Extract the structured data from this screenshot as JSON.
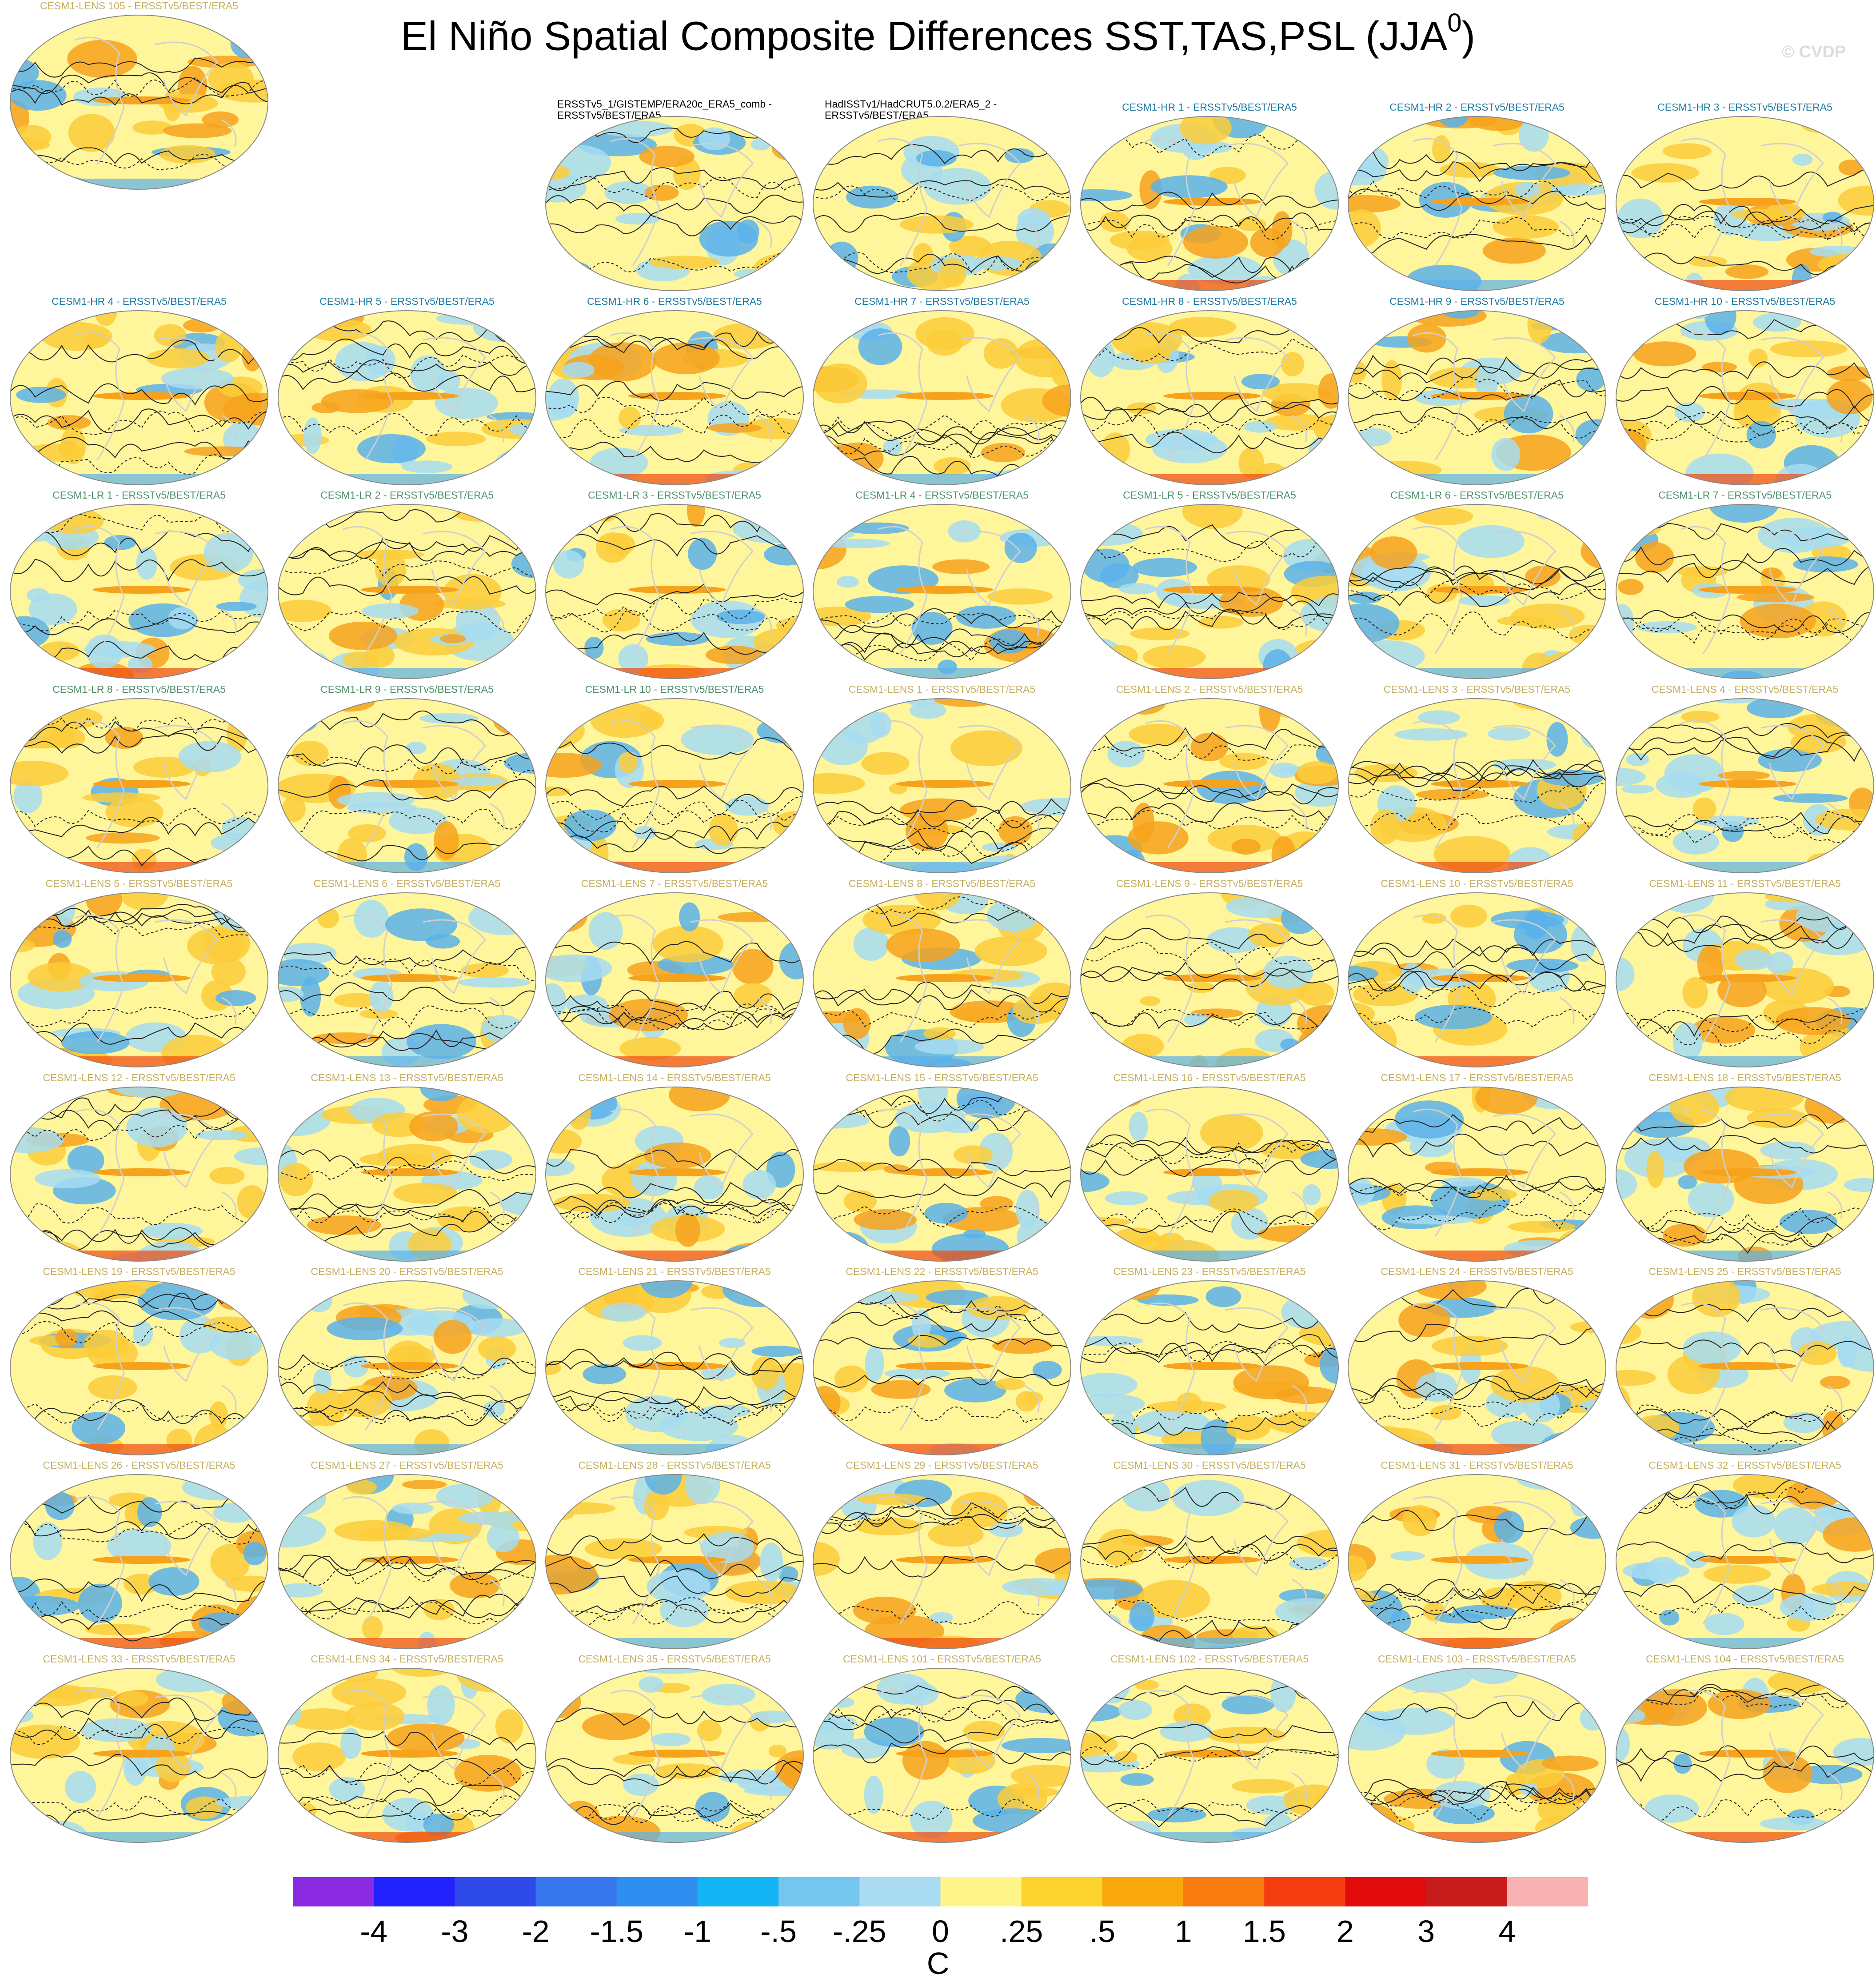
{
  "figure": {
    "title": "El Niño Spatial Composite Differences SST,TAS,PSL (JJA",
    "title_sup": "0",
    "title_end": ")",
    "watermark": "© CVDP",
    "units": "C"
  },
  "colors": {
    "hr_label": "#1f7aa0",
    "lr_label": "#4f8f6a",
    "lens_label": "#c4b060",
    "ocean_base": "#fff59a",
    "cool": "#a6dcf2",
    "cool_strong": "#5bb1ea",
    "warm": "#fccc3a",
    "warm_strong": "#f7a21c",
    "hot": "#f04810"
  },
  "colorbar": {
    "colors": [
      "#8a2be2",
      "#2222ff",
      "#2d4ae8",
      "#3677ee",
      "#2f8ff0",
      "#14b4f5",
      "#74c6ef",
      "#a9dcf2",
      "#fff489",
      "#fcd22c",
      "#faa90d",
      "#f77b0e",
      "#f53d12",
      "#e30c0c",
      "#c81b1b",
      "#f9b1b1"
    ],
    "ticks": [
      "-4",
      "-3",
      "-2",
      "-1.5",
      "-1",
      "-.5",
      "-.25",
      "0",
      ".25",
      ".5",
      "1",
      "1.5",
      "2",
      "3",
      "4"
    ]
  },
  "panels": [
    {
      "label": "ERSSTv5_1/GISTEMP/ERA20c_ERA5_comb - ERSSTv5/BEST/ERA5",
      "group": "obs"
    },
    {
      "label": "HadISSTv1/HadCRUT5.0.2/ERA5_2 - ERSSTv5/BEST/ERA5",
      "group": "obs"
    },
    {
      "label": "CESM1-HR 1 - ERSSTv5/BEST/ERA5",
      "group": "hr"
    },
    {
      "label": "CESM1-HR 2 - ERSSTv5/BEST/ERA5",
      "group": "hr"
    },
    {
      "label": "CESM1-HR 3 - ERSSTv5/BEST/ERA5",
      "group": "hr"
    },
    {
      "label": "CESM1-HR 4 - ERSSTv5/BEST/ERA5",
      "group": "hr"
    },
    {
      "label": "CESM1-HR 5 - ERSSTv5/BEST/ERA5",
      "group": "hr"
    },
    {
      "label": "CESM1-HR 6 - ERSSTv5/BEST/ERA5",
      "group": "hr"
    },
    {
      "label": "CESM1-HR 7 - ERSSTv5/BEST/ERA5",
      "group": "hr"
    },
    {
      "label": "CESM1-HR 8 - ERSSTv5/BEST/ERA5",
      "group": "hr"
    },
    {
      "label": "CESM1-HR 9 - ERSSTv5/BEST/ERA5",
      "group": "hr"
    },
    {
      "label": "CESM1-HR 10 - ERSSTv5/BEST/ERA5",
      "group": "hr"
    },
    {
      "label": "CESM1-LR 1 - ERSSTv5/BEST/ERA5",
      "group": "lr"
    },
    {
      "label": "CESM1-LR 2 - ERSSTv5/BEST/ERA5",
      "group": "lr"
    },
    {
      "label": "CESM1-LR 3 - ERSSTv5/BEST/ERA5",
      "group": "lr"
    },
    {
      "label": "CESM1-LR 4 - ERSSTv5/BEST/ERA5",
      "group": "lr"
    },
    {
      "label": "CESM1-LR 5 - ERSSTv5/BEST/ERA5",
      "group": "lr"
    },
    {
      "label": "CESM1-LR 6 - ERSSTv5/BEST/ERA5",
      "group": "lr"
    },
    {
      "label": "CESM1-LR 7 - ERSSTv5/BEST/ERA5",
      "group": "lr"
    },
    {
      "label": "CESM1-LR 8 - ERSSTv5/BEST/ERA5",
      "group": "lr"
    },
    {
      "label": "CESM1-LR 9 - ERSSTv5/BEST/ERA5",
      "group": "lr"
    },
    {
      "label": "CESM1-LR 10 - ERSSTv5/BEST/ERA5",
      "group": "lr"
    },
    {
      "label": "CESM1-LENS 1 - ERSSTv5/BEST/ERA5",
      "group": "lens"
    },
    {
      "label": "CESM1-LENS 2 - ERSSTv5/BEST/ERA5",
      "group": "lens"
    },
    {
      "label": "CESM1-LENS 3 - ERSSTv5/BEST/ERA5",
      "group": "lens"
    },
    {
      "label": "CESM1-LENS 4 - ERSSTv5/BEST/ERA5",
      "group": "lens"
    },
    {
      "label": "CESM1-LENS 5 - ERSSTv5/BEST/ERA5",
      "group": "lens"
    },
    {
      "label": "CESM1-LENS 6 - ERSSTv5/BEST/ERA5",
      "group": "lens"
    },
    {
      "label": "CESM1-LENS 7 - ERSSTv5/BEST/ERA5",
      "group": "lens"
    },
    {
      "label": "CESM1-LENS 8 - ERSSTv5/BEST/ERA5",
      "group": "lens"
    },
    {
      "label": "CESM1-LENS 9 - ERSSTv5/BEST/ERA5",
      "group": "lens"
    },
    {
      "label": "CESM1-LENS 10 - ERSSTv5/BEST/ERA5",
      "group": "lens"
    },
    {
      "label": "CESM1-LENS 11 - ERSSTv5/BEST/ERA5",
      "group": "lens"
    },
    {
      "label": "CESM1-LENS 12 - ERSSTv5/BEST/ERA5",
      "group": "lens"
    },
    {
      "label": "CESM1-LENS 13 - ERSSTv5/BEST/ERA5",
      "group": "lens"
    },
    {
      "label": "CESM1-LENS 14 - ERSSTv5/BEST/ERA5",
      "group": "lens"
    },
    {
      "label": "CESM1-LENS 15 - ERSSTv5/BEST/ERA5",
      "group": "lens"
    },
    {
      "label": "CESM1-LENS 16 - ERSSTv5/BEST/ERA5",
      "group": "lens"
    },
    {
      "label": "CESM1-LENS 17 - ERSSTv5/BEST/ERA5",
      "group": "lens"
    },
    {
      "label": "CESM1-LENS 18 - ERSSTv5/BEST/ERA5",
      "group": "lens"
    },
    {
      "label": "CESM1-LENS 19 - ERSSTv5/BEST/ERA5",
      "group": "lens"
    },
    {
      "label": "CESM1-LENS 20 - ERSSTv5/BEST/ERA5",
      "group": "lens"
    },
    {
      "label": "CESM1-LENS 21 - ERSSTv5/BEST/ERA5",
      "group": "lens"
    },
    {
      "label": "CESM1-LENS 22 - ERSSTv5/BEST/ERA5",
      "group": "lens"
    },
    {
      "label": "CESM1-LENS 23 - ERSSTv5/BEST/ERA5",
      "group": "lens"
    },
    {
      "label": "CESM1-LENS 24 - ERSSTv5/BEST/ERA5",
      "group": "lens"
    },
    {
      "label": "CESM1-LENS 25 - ERSSTv5/BEST/ERA5",
      "group": "lens"
    },
    {
      "label": "CESM1-LENS 26 - ERSSTv5/BEST/ERA5",
      "group": "lens"
    },
    {
      "label": "CESM1-LENS 27 - ERSSTv5/BEST/ERA5",
      "group": "lens"
    },
    {
      "label": "CESM1-LENS 28 - ERSSTv5/BEST/ERA5",
      "group": "lens"
    },
    {
      "label": "CESM1-LENS 29 - ERSSTv5/BEST/ERA5",
      "group": "lens"
    },
    {
      "label": "CESM1-LENS 30 - ERSSTv5/BEST/ERA5",
      "group": "lens"
    },
    {
      "label": "CESM1-LENS 31 - ERSSTv5/BEST/ERA5",
      "group": "lens"
    },
    {
      "label": "CESM1-LENS 32 - ERSSTv5/BEST/ERA5",
      "group": "lens"
    },
    {
      "label": "CESM1-LENS 33 - ERSSTv5/BEST/ERA5",
      "group": "lens"
    },
    {
      "label": "CESM1-LENS 34 - ERSSTv5/BEST/ERA5",
      "group": "lens"
    },
    {
      "label": "CESM1-LENS 35 - ERSSTv5/BEST/ERA5",
      "group": "lens"
    },
    {
      "label": "CESM1-LENS 101 - ERSSTv5/BEST/ERA5",
      "group": "lens"
    },
    {
      "label": "CESM1-LENS 102 - ERSSTv5/BEST/ERA5",
      "group": "lens"
    },
    {
      "label": "CESM1-LENS 103 - ERSSTv5/BEST/ERA5",
      "group": "lens"
    },
    {
      "label": "CESM1-LENS 104 - ERSSTv5/BEST/ERA5",
      "group": "lens"
    },
    {
      "label": "CESM1-LENS 105 - ERSSTv5/BEST/ERA5",
      "group": "lens"
    }
  ]
}
